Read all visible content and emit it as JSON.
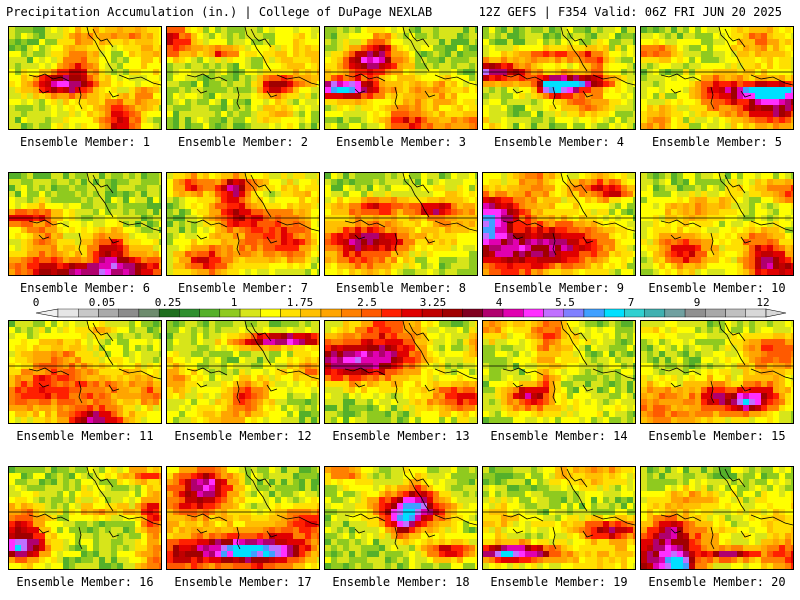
{
  "header": {
    "left": "Precipitation Accumulation (in.) | College of DuPage NEXLAB",
    "right": "12Z GEFS | F354 Valid: 06Z FRI JUN 20 2025"
  },
  "members": [
    "Ensemble Member: 1",
    "Ensemble Member: 2",
    "Ensemble Member: 3",
    "Ensemble Member: 4",
    "Ensemble Member: 5",
    "Ensemble Member: 6",
    "Ensemble Member: 7",
    "Ensemble Member: 8",
    "Ensemble Member: 9",
    "Ensemble Member: 10",
    "Ensemble Member: 11",
    "Ensemble Member: 12",
    "Ensemble Member: 13",
    "Ensemble Member: 14",
    "Ensemble Member: 15",
    "Ensemble Member: 16",
    "Ensemble Member: 17",
    "Ensemble Member: 18",
    "Ensemble Member: 19",
    "Ensemble Member: 20"
  ],
  "colorbar": {
    "tick_labels": [
      "0",
      "0.05",
      "0.25",
      "1",
      "1.75",
      "2.5",
      "3.25",
      "4",
      "5.5",
      "7",
      "9",
      "12"
    ],
    "colors": [
      "#e6e6e6",
      "#c8c8c8",
      "#aaaaaa",
      "#8c8c8c",
      "#6e8c6e",
      "#1e6e1e",
      "#2f8f2f",
      "#55b02a",
      "#8fca1f",
      "#d7e51a",
      "#ffff00",
      "#ffe000",
      "#ffc000",
      "#ffa500",
      "#ff8000",
      "#ff5a00",
      "#ff2000",
      "#e00000",
      "#c00000",
      "#a00000",
      "#800020",
      "#b0006e",
      "#e000b0",
      "#ff30ff",
      "#c070ff",
      "#8080ff",
      "#40a0ff",
      "#00e0ff",
      "#30d0d0",
      "#40b0b0",
      "#70a0a0",
      "#909090",
      "#a8a8a8",
      "#c0c0c0",
      "#d8d8d8"
    ]
  }
}
